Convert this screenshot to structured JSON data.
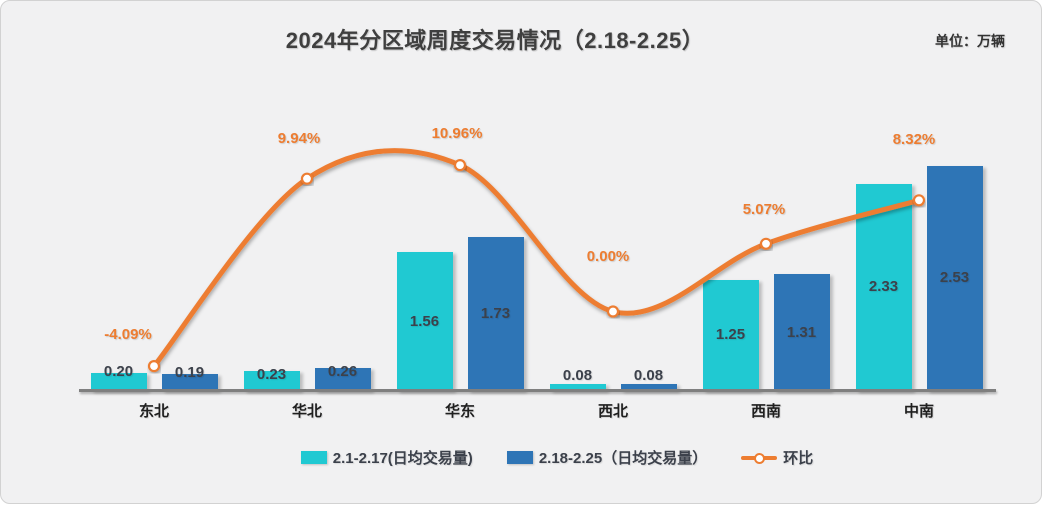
{
  "title": "2024年分区域周度交易情况（2.18-2.25）",
  "unit_label": "单位：万辆",
  "colors": {
    "bar_series_1": "#20C9D2",
    "bar_series_2": "#2E75B6",
    "line_series": "#ED7D31",
    "axis": "#7F7F7F",
    "background": "#F1F1F2",
    "bar_label_text": "#3C414B",
    "category_text": "#1F1F1F",
    "title_text": "#3F3F3F"
  },
  "chart_data": {
    "type": "bar",
    "subtype": "grouped bars with smooth overlay line (combo chart)",
    "title": "2024年分区域周度交易情况（2.18-2.25）",
    "unit": "万辆",
    "categories": [
      "东北",
      "华北",
      "华东",
      "西北",
      "西南",
      "中南"
    ],
    "series": [
      {
        "name": "2.1-2.17(日均交易量)",
        "type": "bar",
        "color": "#20C9D2",
        "values": [
          0.2,
          0.23,
          1.56,
          0.08,
          1.25,
          2.33
        ]
      },
      {
        "name": "2.18-2.25（日均交易量）",
        "type": "bar",
        "color": "#2E75B6",
        "values": [
          0.19,
          0.26,
          1.73,
          0.08,
          1.31,
          2.53
        ]
      },
      {
        "name": "环比",
        "type": "line",
        "color": "#ED7D31",
        "values": [
          -4.09,
          9.94,
          10.96,
          0.0,
          5.07,
          8.32
        ],
        "value_format": "percent",
        "labels": [
          "-4.09%",
          "9.94%",
          "10.96%",
          "0.00%",
          "5.07%",
          "8.32%"
        ]
      }
    ],
    "xlabel": "",
    "ylabel": "",
    "value_axis_visible": false,
    "gridlines": false,
    "legend_position": "bottom",
    "data_labels": true
  }
}
